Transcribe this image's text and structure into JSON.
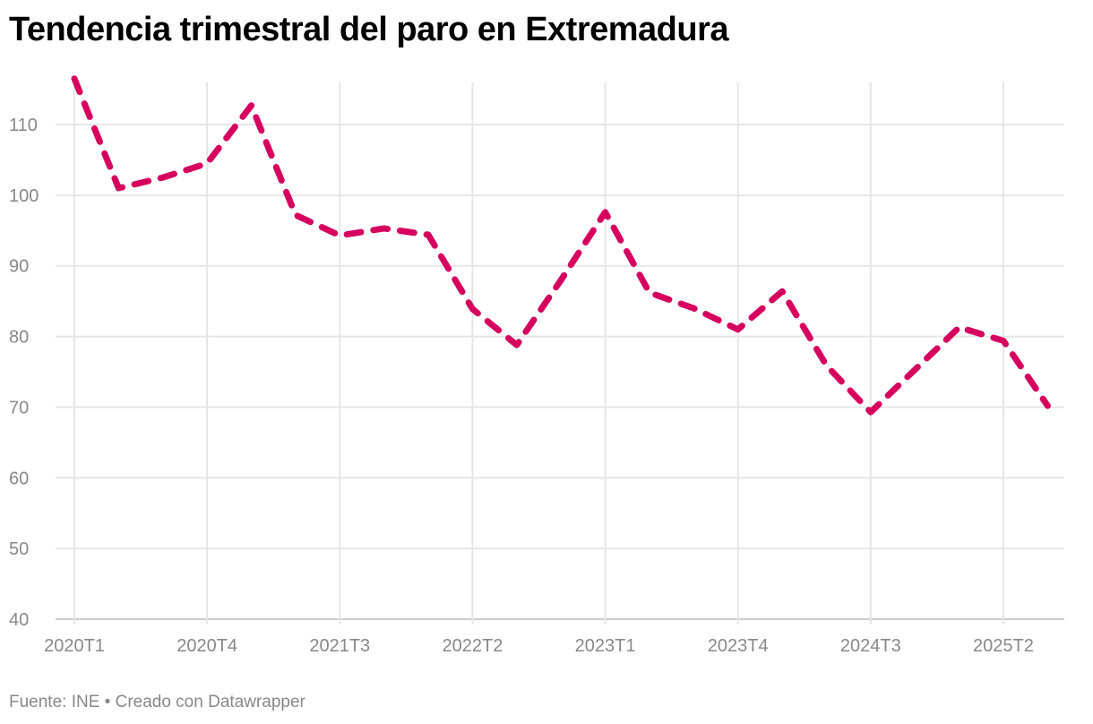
{
  "chart_data": {
    "type": "line",
    "title": "Tendencia trimestral del paro en Extremadura",
    "xlabel": "",
    "ylabel": "",
    "ylim": [
      40,
      116
    ],
    "yticks": [
      40,
      50,
      60,
      70,
      80,
      90,
      100,
      110
    ],
    "xtick_labels": [
      "2020T1",
      "2020T4",
      "2021T3",
      "2022T2",
      "2023T1",
      "2023T4",
      "2024T3",
      "2025T2"
    ],
    "grid": true,
    "line_color": "#d6005f",
    "line_style": "dashed",
    "x": [
      "2020T1",
      "2020T2",
      "2020T3",
      "2020T4",
      "2021T1",
      "2021T2",
      "2021T3",
      "2021T4",
      "2022T1",
      "2022T2",
      "2022T3",
      "2022T4",
      "2023T1",
      "2023T2",
      "2023T3",
      "2023T4",
      "2024T1",
      "2024T2",
      "2024T3",
      "2024T4",
      "2025T1",
      "2025T2",
      "2025T3"
    ],
    "series": [
      {
        "name": "Paro",
        "values": [
          116.5,
          101.0,
          102.5,
          104.5,
          112.7,
          97.2,
          94.3,
          95.3,
          94.4,
          83.9,
          78.8,
          88.0,
          97.6,
          86.2,
          84.0,
          81.0,
          86.4,
          75.9,
          69.3,
          75.3,
          81.3,
          79.4,
          70.2
        ]
      }
    ]
  },
  "footer": "Fuente: INE • Creado con Datawrapper"
}
